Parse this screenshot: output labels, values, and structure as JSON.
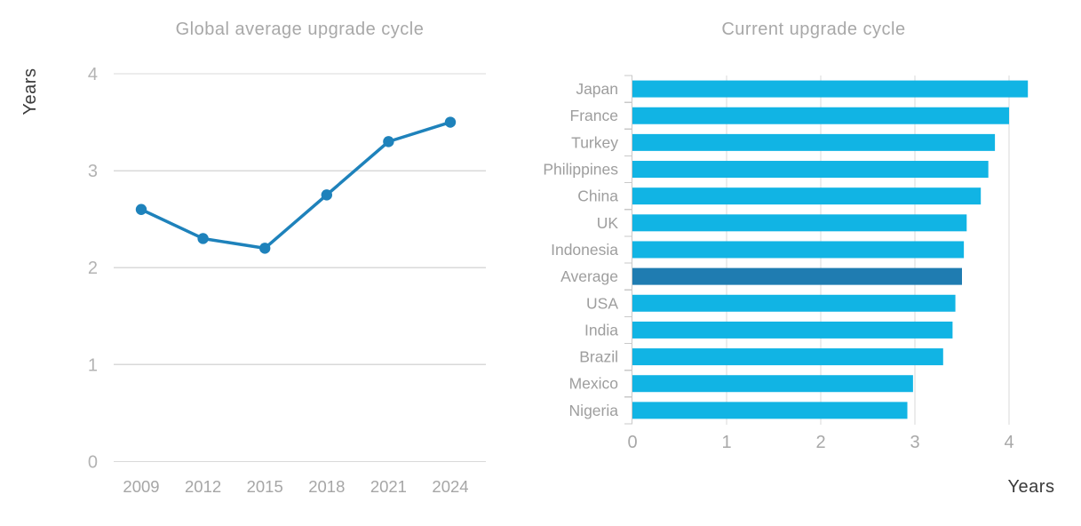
{
  "page_background": "#ffffff",
  "chart_data": [
    {
      "type": "line",
      "title": "Global average upgrade cycle",
      "ylabel": "Years",
      "x": [
        "2009",
        "2012",
        "2015",
        "2018",
        "2021",
        "2024"
      ],
      "values": [
        2.6,
        2.3,
        2.2,
        2.75,
        3.3,
        3.5
      ],
      "ylim": [
        0,
        4
      ],
      "yticks": [
        "4",
        "3",
        "2",
        "1",
        "0"
      ],
      "ytick_values": [
        4,
        3,
        2,
        1,
        0
      ],
      "grid": "horizontal",
      "legend": "none",
      "line_color": "#1E82BB",
      "marker": "circle",
      "gridline_color": "#D9D9D9",
      "tick_label_color": "#B3B3B3",
      "x_label_color": "#A6A6A6",
      "title_color": "#A8A8A8",
      "axis_title_color": "#3A3A3A"
    },
    {
      "type": "bar",
      "orientation": "horizontal",
      "title": "Current upgrade cycle",
      "xlabel": "Years",
      "categories": [
        "Japan",
        "France",
        "Turkey",
        "Philippines",
        "China",
        "UK",
        "Indonesia",
        "Average",
        "USA",
        "India",
        "Brazil",
        "Mexico",
        "Nigeria"
      ],
      "values": [
        4.2,
        4.0,
        3.85,
        3.78,
        3.7,
        3.55,
        3.52,
        3.5,
        3.43,
        3.4,
        3.3,
        2.98,
        2.92
      ],
      "xlim": [
        0,
        4
      ],
      "xticks": [
        "0",
        "1",
        "2",
        "3",
        "4"
      ],
      "xtick_values": [
        0,
        1,
        2,
        3,
        4
      ],
      "grid": "vertical",
      "legend": "none",
      "bar_color": "#11B4E4",
      "highlight_category": "Average",
      "highlight_color": "#1F7CB1",
      "gridline_color": "#D9D9D9",
      "axis_line_color": "#C9C9C9",
      "category_label_color": "#9E9E9E",
      "tick_label_color": "#A8A8A8",
      "title_color": "#A8A8A8",
      "axis_title_color": "#3A3A3A"
    }
  ]
}
